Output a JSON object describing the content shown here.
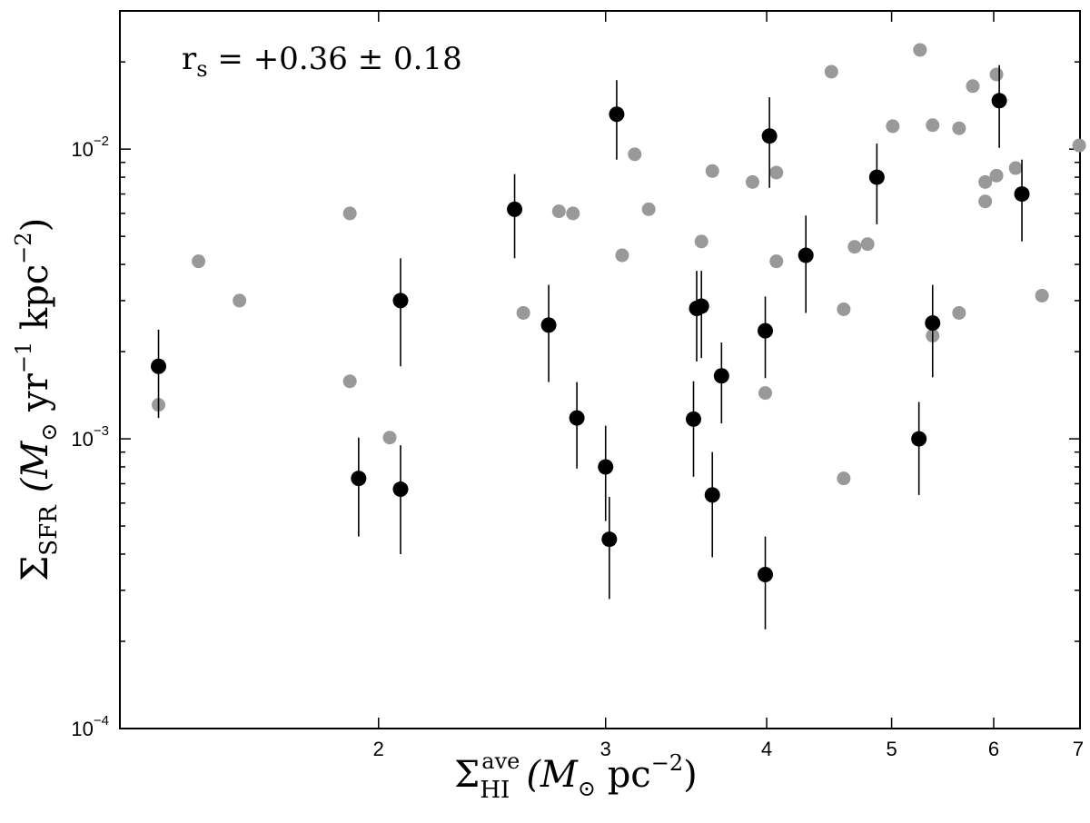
{
  "chart_data": {
    "type": "scatter",
    "xscale": "log",
    "yscale": "log",
    "xlim": [
      1.26,
      7.0
    ],
    "ylim": [
      0.0001,
      0.03
    ],
    "xticks": [
      {
        "value": 2,
        "label": "2"
      },
      {
        "value": 3,
        "label": "3"
      },
      {
        "value": 4,
        "label": "4"
      },
      {
        "value": 5,
        "label": "5"
      },
      {
        "value": 6,
        "label": "6"
      },
      {
        "value": 7,
        "label": "7"
      }
    ],
    "yticks": [
      {
        "value": 0.0001,
        "mantissa": "10",
        "exponent": "−4"
      },
      {
        "value": 0.001,
        "mantissa": "10",
        "exponent": "−3"
      },
      {
        "value": 0.01,
        "mantissa": "10",
        "exponent": "−2"
      }
    ],
    "xlabel": {
      "sigma": "Σ",
      "sup": "ave",
      "sub": "HI",
      "rest": "(M",
      "sun": "⊙",
      "unit": " pc",
      "unit_exp": "−2",
      "close": ")"
    },
    "ylabel": {
      "sigma": "Σ",
      "sub": "SFR",
      "open": "(M",
      "sun": "⊙",
      "unit1": " yr",
      "unit1_exp": "−1",
      "unit2": " kpc",
      "unit2_exp": "−2",
      "close": ")"
    },
    "annotation": {
      "prefix": "r",
      "sub": "s",
      "text": " = +0.36 ± 0.18"
    },
    "colors": {
      "black_series": "#000000",
      "gray_series": "#999999",
      "errorbar": "#000000"
    },
    "series": [
      {
        "marker": "filled-circle-black",
        "errorbars": true,
        "points": [
          {
            "x": 1.35,
            "y": 0.00178,
            "ylo": 0.00118,
            "yhi": 0.00238
          },
          {
            "x": 1.93,
            "y": 0.00073,
            "ylo": 0.00046,
            "yhi": 0.00101
          },
          {
            "x": 2.08,
            "y": 0.003,
            "ylo": 0.00178,
            "yhi": 0.0042
          },
          {
            "x": 2.08,
            "y": 0.00067,
            "ylo": 0.0004,
            "yhi": 0.00095
          },
          {
            "x": 2.55,
            "y": 0.0062,
            "ylo": 0.0042,
            "yhi": 0.0082
          },
          {
            "x": 2.71,
            "y": 0.00247,
            "ylo": 0.00157,
            "yhi": 0.0034
          },
          {
            "x": 2.85,
            "y": 0.00118,
            "ylo": 0.00079,
            "yhi": 0.00157
          },
          {
            "x": 3.0,
            "y": 0.0008,
            "ylo": 0.00052,
            "yhi": 0.00111
          },
          {
            "x": 3.02,
            "y": 0.00045,
            "ylo": 0.00028,
            "yhi": 0.00063
          },
          {
            "x": 3.06,
            "y": 0.0132,
            "ylo": 0.0092,
            "yhi": 0.0173
          },
          {
            "x": 3.51,
            "y": 0.00117,
            "ylo": 0.00074,
            "yhi": 0.00158
          },
          {
            "x": 3.53,
            "y": 0.00282,
            "ylo": 0.00185,
            "yhi": 0.0038
          },
          {
            "x": 3.56,
            "y": 0.00287,
            "ylo": 0.0019,
            "yhi": 0.0038
          },
          {
            "x": 3.63,
            "y": 0.00064,
            "ylo": 0.00039,
            "yhi": 0.0009
          },
          {
            "x": 3.69,
            "y": 0.00165,
            "ylo": 0.00113,
            "yhi": 0.00215
          },
          {
            "x": 3.99,
            "y": 0.00236,
            "ylo": 0.00162,
            "yhi": 0.0031
          },
          {
            "x": 3.99,
            "y": 0.00034,
            "ylo": 0.00022,
            "yhi": 0.00046
          },
          {
            "x": 4.02,
            "y": 0.0111,
            "ylo": 0.00735,
            "yhi": 0.0151
          },
          {
            "x": 4.29,
            "y": 0.0043,
            "ylo": 0.00272,
            "yhi": 0.0059
          },
          {
            "x": 4.87,
            "y": 0.008,
            "ylo": 0.0055,
            "yhi": 0.01045
          },
          {
            "x": 5.25,
            "y": 0.001,
            "ylo": 0.00064,
            "yhi": 0.00134
          },
          {
            "x": 5.38,
            "y": 0.00251,
            "ylo": 0.00163,
            "yhi": 0.0034
          },
          {
            "x": 6.06,
            "y": 0.0147,
            "ylo": 0.0101,
            "yhi": 0.0195
          },
          {
            "x": 6.31,
            "y": 0.007,
            "ylo": 0.0048,
            "yhi": 0.0092
          }
        ]
      },
      {
        "marker": "filled-circle-gray",
        "errorbars": false,
        "points": [
          {
            "x": 1.35,
            "y": 0.00131
          },
          {
            "x": 1.45,
            "y": 0.0041
          },
          {
            "x": 1.56,
            "y": 0.003
          },
          {
            "x": 1.9,
            "y": 0.006
          },
          {
            "x": 1.9,
            "y": 0.00158
          },
          {
            "x": 2.04,
            "y": 0.00101
          },
          {
            "x": 2.59,
            "y": 0.00272
          },
          {
            "x": 2.76,
            "y": 0.0061
          },
          {
            "x": 2.83,
            "y": 0.006
          },
          {
            "x": 3.09,
            "y": 0.0043
          },
          {
            "x": 3.16,
            "y": 0.0096
          },
          {
            "x": 3.24,
            "y": 0.0062
          },
          {
            "x": 3.56,
            "y": 0.0048
          },
          {
            "x": 3.63,
            "y": 0.0084
          },
          {
            "x": 3.9,
            "y": 0.0077
          },
          {
            "x": 3.99,
            "y": 0.00144
          },
          {
            "x": 4.07,
            "y": 0.0083
          },
          {
            "x": 4.07,
            "y": 0.0041
          },
          {
            "x": 4.49,
            "y": 0.0185
          },
          {
            "x": 4.59,
            "y": 0.0028
          },
          {
            "x": 4.59,
            "y": 0.00073
          },
          {
            "x": 4.68,
            "y": 0.0046
          },
          {
            "x": 4.79,
            "y": 0.0047
          },
          {
            "x": 5.01,
            "y": 0.012
          },
          {
            "x": 5.26,
            "y": 0.022
          },
          {
            "x": 5.38,
            "y": 0.0121
          },
          {
            "x": 5.38,
            "y": 0.00227
          },
          {
            "x": 5.64,
            "y": 0.0118
          },
          {
            "x": 5.64,
            "y": 0.00272
          },
          {
            "x": 5.78,
            "y": 0.0165
          },
          {
            "x": 5.91,
            "y": 0.0077
          },
          {
            "x": 5.91,
            "y": 0.0066
          },
          {
            "x": 6.03,
            "y": 0.0181
          },
          {
            "x": 6.03,
            "y": 0.0081
          },
          {
            "x": 6.24,
            "y": 0.0086
          },
          {
            "x": 6.54,
            "y": 0.00312
          },
          {
            "x": 6.99,
            "y": 0.0103
          }
        ]
      }
    ]
  }
}
